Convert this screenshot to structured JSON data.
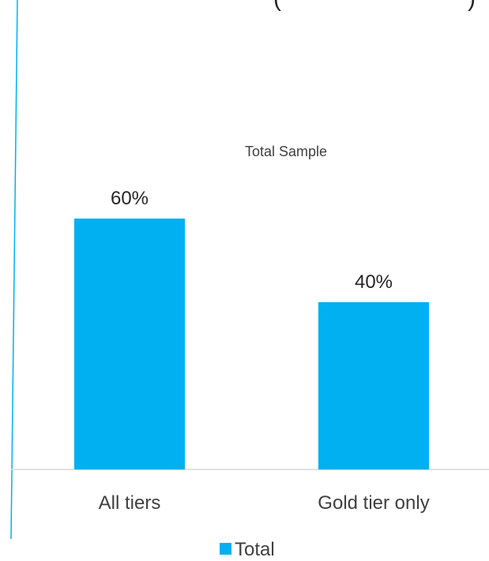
{
  "chart_data": {
    "type": "bar",
    "title_fragment_left": "(",
    "title_fragment_right": ")",
    "subtitle": "Total Sample",
    "categories": [
      "All tiers",
      "Gold tier only"
    ],
    "series": [
      {
        "name": "Total",
        "values": [
          60,
          40
        ],
        "labels": [
          "60%",
          "40%"
        ]
      }
    ],
    "ylim": [
      0,
      100
    ],
    "grid": false,
    "legend_position": "bottom",
    "colors": {
      "bar": "#00b0f0",
      "axis": "#d9d9d9",
      "left_rule": "#00b0f0"
    }
  }
}
